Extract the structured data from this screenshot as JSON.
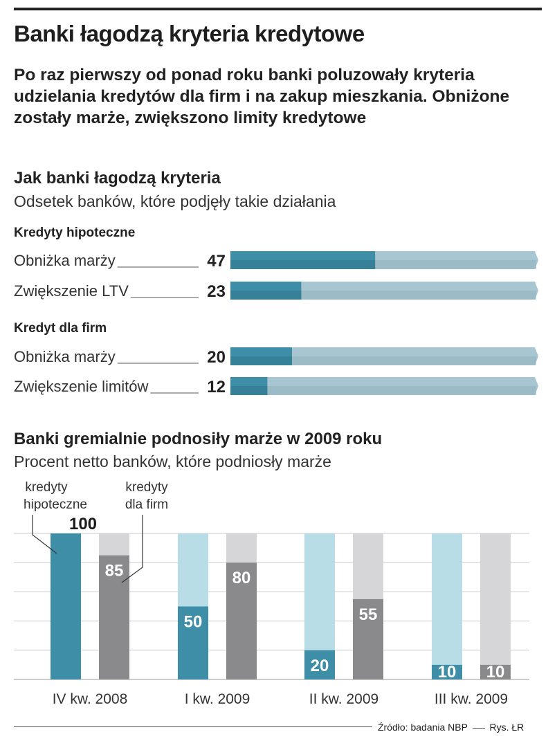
{
  "title": "Banki łagodzą kryteria kredytowe",
  "lead": "Po raz pierwszy od ponad roku banki poluzowały kryteria udzielania kredytów dla firm i na zakup mieszkania. Obniżone zostały marże, zwiększono limity kredytowe",
  "chart_data": [
    {
      "type": "bar",
      "orientation": "horizontal",
      "title": "Jak banki łagodzą kryteria",
      "subtitle": "Odsetek banków, które podjęły takie działania",
      "xlim": [
        0,
        100
      ],
      "groups": [
        {
          "name": "Kredyty hipoteczne",
          "categories": [
            "Obniżka marży",
            "Zwiększenie LTV"
          ],
          "values": [
            47,
            23
          ]
        },
        {
          "name": "Kredyt dla firm",
          "categories": [
            "Obniżka marży",
            "Zwiększenie limitów"
          ],
          "values": [
            20,
            12
          ]
        }
      ],
      "colors": {
        "fill": "#3d8ea6",
        "track": "#a8c6d1",
        "track_edge": "#8fb3c0"
      }
    },
    {
      "type": "bar",
      "orientation": "vertical",
      "title": "Banki gremialnie podnosiły marże w 2009 roku",
      "subtitle": "Procent netto banków, które podniosły marże",
      "categories": [
        "IV kw. 2008",
        "I kw. 2009",
        "II kw. 2009",
        "III kw. 2009"
      ],
      "series": [
        {
          "name": "kredyty hipoteczne",
          "values": [
            100,
            50,
            20,
            10
          ]
        },
        {
          "name": "kredyty dla firm",
          "values": [
            85,
            80,
            55,
            10
          ]
        }
      ],
      "ylim": [
        0,
        100
      ],
      "grid": true,
      "colors": {
        "series1": "#3d8ea6",
        "series1_track": "#b9dde6",
        "series2": "#8a8a8c",
        "series2_track": "#d6d6d8",
        "grid": "#c9c9c9"
      }
    }
  ],
  "source": "Źródło: badania NBP",
  "credit": "Rys. ŁR"
}
